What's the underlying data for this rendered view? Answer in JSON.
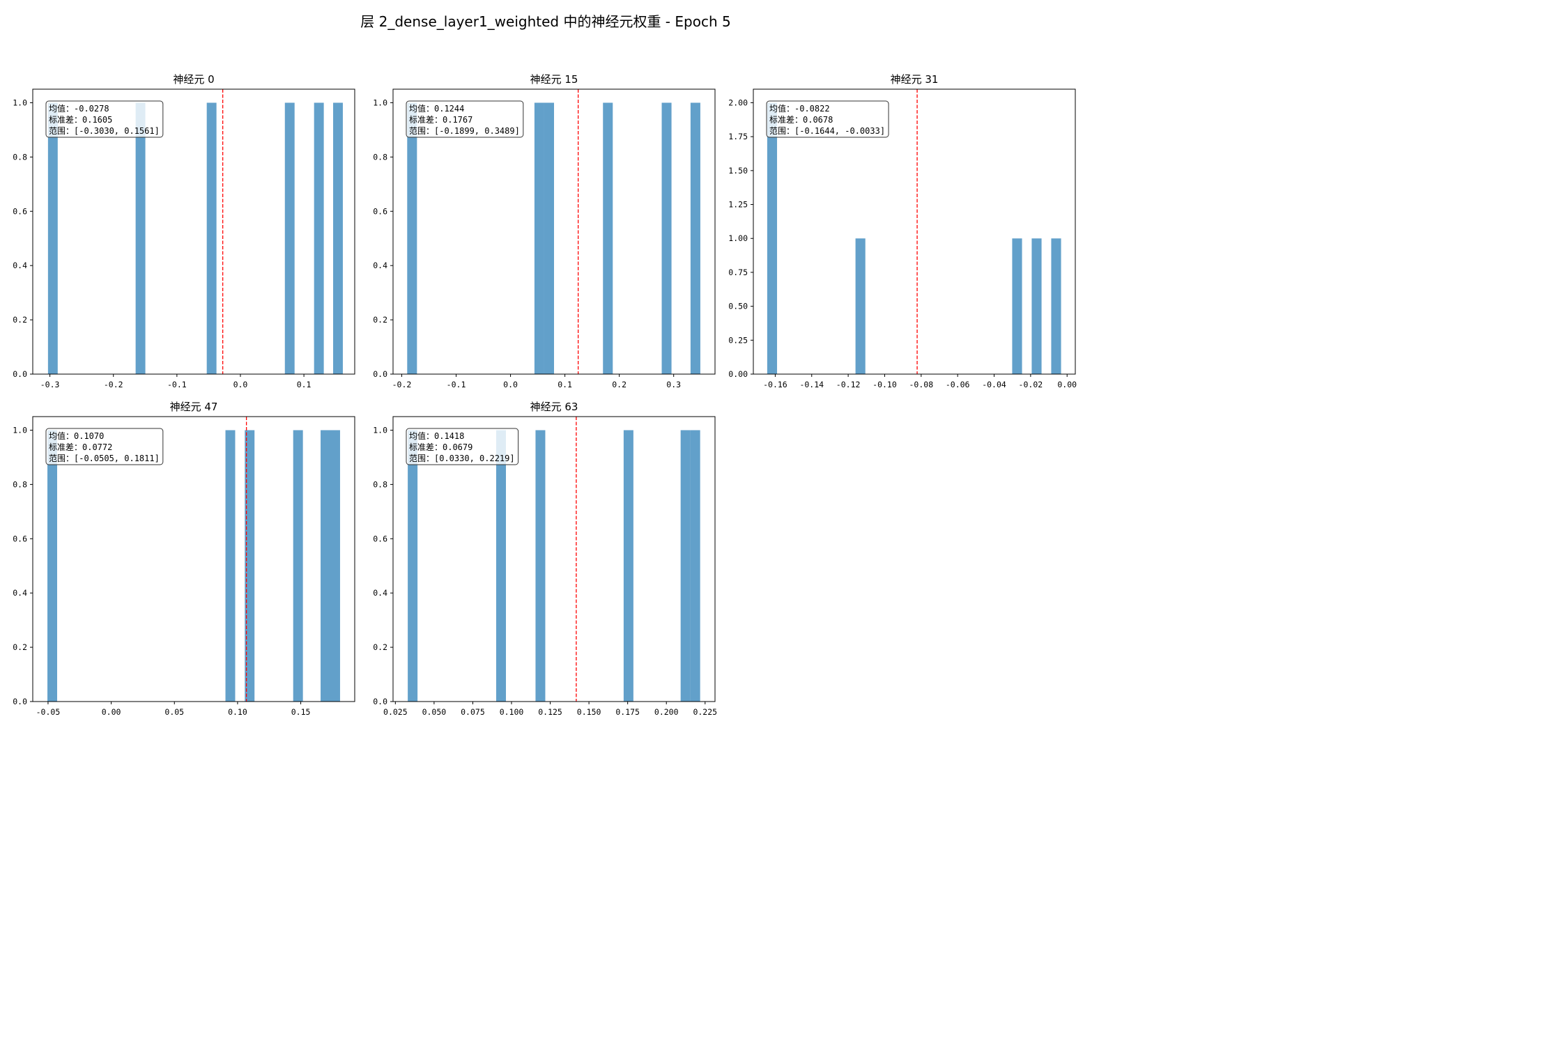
{
  "figure_title": "层 2_dense_layer1_weighted 中的神经元权重 - Epoch 5",
  "colors": {
    "bar": "#1f77b4",
    "bar_alpha": 0.7,
    "mean_line": "#ff0000",
    "frame": "#000000",
    "box_face": "#ffffff",
    "box_edge": "#333333"
  },
  "stats_labels": {
    "mean": "均值",
    "std": "标准差",
    "range": "范围"
  },
  "chart_data": [
    {
      "type": "bar",
      "title": "神经元 0",
      "xlim": [
        -0.327,
        0.18
      ],
      "ylim": [
        0,
        1.05
      ],
      "xticks": [
        -0.3,
        -0.2,
        -0.1,
        0.0,
        0.1
      ],
      "xtick_labels": [
        "-0.3",
        "-0.2",
        "-0.1",
        "0.0",
        "0.1"
      ],
      "yticks": [
        0.0,
        0.2,
        0.4,
        0.6,
        0.8,
        1.0
      ],
      "ytick_labels": [
        "0.0",
        "0.2",
        "0.4",
        "0.6",
        "0.8",
        "1.0"
      ],
      "bin_width": 0.0153,
      "bars": [
        {
          "x": -0.303,
          "count": 1
        },
        {
          "x": -0.165,
          "count": 1
        },
        {
          "x": -0.053,
          "count": 1
        },
        {
          "x": 0.07,
          "count": 1
        },
        {
          "x": 0.116,
          "count": 1
        },
        {
          "x": 0.146,
          "count": 1
        }
      ],
      "mean": -0.0278,
      "stats": {
        "mean": "-0.0278",
        "std": "0.1605",
        "range": "[-0.3030, 0.1561]"
      }
    },
    {
      "type": "bar",
      "title": "神经元 15",
      "xlim": [
        -0.216,
        0.376
      ],
      "ylim": [
        0,
        1.05
      ],
      "xticks": [
        -0.2,
        -0.1,
        0.0,
        0.1,
        0.2,
        0.3
      ],
      "xtick_labels": [
        "-0.2",
        "-0.1",
        "0.0",
        "0.1",
        "0.2",
        "0.3"
      ],
      "yticks": [
        0.0,
        0.2,
        0.4,
        0.6,
        0.8,
        1.0
      ],
      "ytick_labels": [
        "0.0",
        "0.2",
        "0.4",
        "0.6",
        "0.8",
        "1.0"
      ],
      "bin_width": 0.018,
      "bars": [
        {
          "x": -0.19,
          "count": 1
        },
        {
          "x": 0.044,
          "count": 1
        },
        {
          "x": 0.062,
          "count": 1
        },
        {
          "x": 0.17,
          "count": 1
        },
        {
          "x": 0.278,
          "count": 1
        },
        {
          "x": 0.331,
          "count": 1
        }
      ],
      "mean": 0.1244,
      "stats": {
        "mean": "0.1244",
        "std": "0.1767",
        "range": "[-0.1899, 0.3489]"
      }
    },
    {
      "type": "bar",
      "title": "神经元 31",
      "xlim": [
        -0.172,
        0.0045
      ],
      "ylim": [
        0,
        2.1
      ],
      "xticks": [
        -0.16,
        -0.14,
        -0.12,
        -0.1,
        -0.08,
        -0.06,
        -0.04,
        -0.02,
        0.0
      ],
      "xtick_labels": [
        "-0.16",
        "-0.14",
        "-0.12",
        "-0.10",
        "-0.08",
        "-0.06",
        "-0.04",
        "-0.02",
        "0.00"
      ],
      "yticks": [
        0.0,
        0.25,
        0.5,
        0.75,
        1.0,
        1.25,
        1.5,
        1.75,
        2.0
      ],
      "ytick_labels": [
        "0.00",
        "0.25",
        "0.50",
        "0.75",
        "1.00",
        "1.25",
        "1.50",
        "1.75",
        "2.00"
      ],
      "bin_width": 0.0054,
      "bars": [
        {
          "x": -0.1644,
          "count": 2
        },
        {
          "x": -0.116,
          "count": 1
        },
        {
          "x": -0.0301,
          "count": 1
        },
        {
          "x": -0.0194,
          "count": 1
        },
        {
          "x": -0.0087,
          "count": 1
        }
      ],
      "mean": -0.0822,
      "stats": {
        "mean": "-0.0822",
        "std": "0.0678",
        "range": "[-0.1644, -0.0033]"
      }
    },
    {
      "type": "bar",
      "title": "神经元 47",
      "xlim": [
        -0.0621,
        0.1927
      ],
      "ylim": [
        0,
        1.05
      ],
      "xticks": [
        -0.05,
        0.0,
        0.05,
        0.1,
        0.15
      ],
      "xtick_labels": [
        "-0.05",
        "0.00",
        "0.05",
        "0.10",
        "0.15"
      ],
      "yticks": [
        0.0,
        0.2,
        0.4,
        0.6,
        0.8,
        1.0
      ],
      "ytick_labels": [
        "0.0",
        "0.2",
        "0.4",
        "0.6",
        "0.8",
        "1.0"
      ],
      "bin_width": 0.0077,
      "bars": [
        {
          "x": -0.0505,
          "count": 1
        },
        {
          "x": 0.0904,
          "count": 1
        },
        {
          "x": 0.1057,
          "count": 1
        },
        {
          "x": 0.144,
          "count": 1
        },
        {
          "x": 0.1657,
          "count": 1
        },
        {
          "x": 0.1734,
          "count": 1
        }
      ],
      "mean": 0.107,
      "stats": {
        "mean": "0.1070",
        "std": "0.0772",
        "range": "[-0.0505, 0.1811]"
      }
    },
    {
      "type": "bar",
      "title": "神经元 63",
      "xlim": [
        0.0235,
        0.2314
      ],
      "ylim": [
        0,
        1.05
      ],
      "xticks": [
        0.025,
        0.05,
        0.075,
        0.1,
        0.125,
        0.15,
        0.175,
        0.2,
        0.225
      ],
      "xtick_labels": [
        "0.025",
        "0.050",
        "0.075",
        "0.100",
        "0.125",
        "0.150",
        "0.175",
        "0.200",
        "0.225"
      ],
      "yticks": [
        0.0,
        0.2,
        0.4,
        0.6,
        0.8,
        1.0
      ],
      "ytick_labels": [
        "0.0",
        "0.2",
        "0.4",
        "0.6",
        "0.8",
        "1.0"
      ],
      "bin_width": 0.0063,
      "bars": [
        {
          "x": 0.033,
          "count": 1
        },
        {
          "x": 0.0901,
          "count": 1
        },
        {
          "x": 0.1155,
          "count": 1
        },
        {
          "x": 0.1724,
          "count": 1
        },
        {
          "x": 0.2092,
          "count": 1
        },
        {
          "x": 0.2155,
          "count": 1
        }
      ],
      "mean": 0.1418,
      "stats": {
        "mean": "0.1418",
        "std": "0.0679",
        "range": "[0.0330, 0.2219]"
      }
    }
  ]
}
